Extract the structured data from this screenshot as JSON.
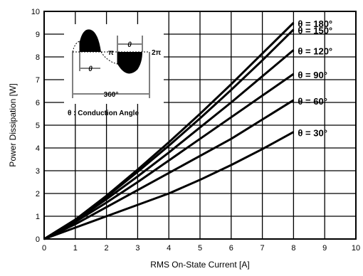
{
  "chart_data": {
    "type": "line",
    "title": "",
    "xlabel": "RMS On-State Current [A]",
    "ylabel": "Power Dissipation [W]",
    "xlim": [
      0,
      10
    ],
    "ylim": [
      0,
      10
    ],
    "xticks": [
      "0",
      "1",
      "2",
      "3",
      "4",
      "5",
      "6",
      "7",
      "8",
      "9",
      "10"
    ],
    "yticks": [
      "0",
      "1",
      "2",
      "3",
      "4",
      "5",
      "6",
      "7",
      "8",
      "9",
      "10"
    ],
    "grid": true,
    "series": [
      {
        "name": "θ = 180°",
        "x": [
          0,
          1,
          2,
          3,
          4,
          5,
          6,
          7,
          8
        ],
        "y": [
          0,
          0.85,
          1.9,
          3.05,
          4.25,
          5.5,
          6.8,
          8.15,
          9.5
        ]
      },
      {
        "name": "θ = 150°",
        "x": [
          0,
          1,
          2,
          3,
          4,
          5,
          6,
          7,
          8
        ],
        "y": [
          0,
          0.85,
          1.85,
          2.95,
          4.1,
          5.3,
          6.55,
          7.85,
          9.2
        ]
      },
      {
        "name": "θ = 120°",
        "x": [
          0,
          1,
          2,
          3,
          4,
          5,
          6,
          7,
          8
        ],
        "y": [
          0,
          0.8,
          1.75,
          2.75,
          3.8,
          4.9,
          6.0,
          7.15,
          8.3
        ]
      },
      {
        "name": "θ = 90°",
        "x": [
          0,
          1,
          2,
          3,
          4,
          5,
          6,
          7,
          8
        ],
        "y": [
          0,
          0.75,
          1.6,
          2.5,
          3.45,
          4.4,
          5.35,
          6.3,
          7.25
        ]
      },
      {
        "name": "θ = 60°",
        "x": [
          0,
          1,
          2,
          3,
          4,
          5,
          6,
          7,
          8
        ],
        "y": [
          0,
          0.65,
          1.4,
          2.15,
          2.9,
          3.65,
          4.4,
          5.25,
          6.1
        ]
      },
      {
        "name": "θ = 30°",
        "x": [
          0,
          1,
          2,
          3,
          4,
          5,
          6,
          7,
          8
        ],
        "y": [
          0,
          0.5,
          1.0,
          1.5,
          2.0,
          2.6,
          3.25,
          3.95,
          4.7
        ]
      }
    ],
    "inset": {
      "caption": "θ : Conduction Angle",
      "labels": {
        "theta_top": "θ",
        "theta_bottom": "θ",
        "pi": "π",
        "two_pi": "2π",
        "period": "360°"
      }
    }
  }
}
